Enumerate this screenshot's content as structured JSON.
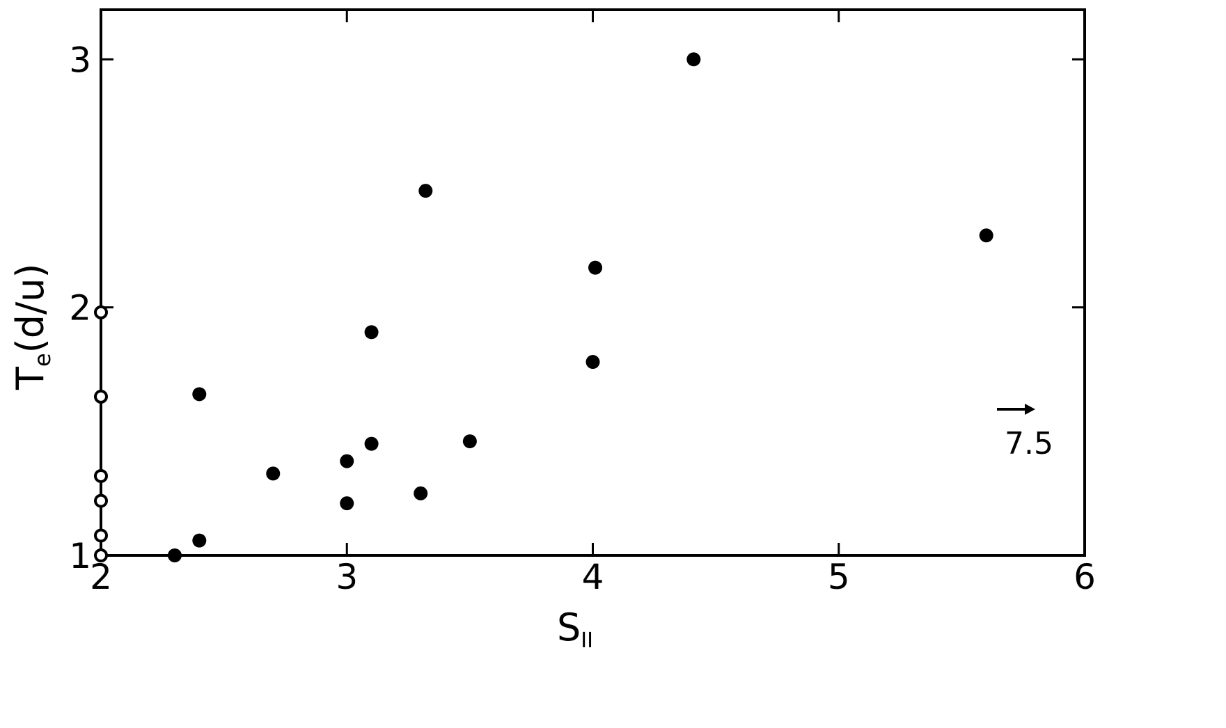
{
  "chart_data": {
    "type": "scatter",
    "title": "",
    "xlabel": "S",
    "xlabel_sub": "II",
    "ylabel": "T",
    "ylabel_sub": "e",
    "ylabel_rest": "(d/u)",
    "xlim": [
      2,
      6
    ],
    "ylim": [
      1,
      3.2
    ],
    "xticks": [
      2,
      3,
      4,
      5,
      6
    ],
    "xtick_labels": [
      "2",
      "3",
      "4",
      "5",
      "6"
    ],
    "yticks": [
      1,
      2,
      3
    ],
    "ytick_labels": [
      "1",
      "2",
      "3"
    ],
    "grid": false,
    "points": [
      {
        "x": 2.0,
        "y": 1.0,
        "style": "open"
      },
      {
        "x": 2.0,
        "y": 1.08,
        "style": "open"
      },
      {
        "x": 2.0,
        "y": 1.22,
        "style": "open"
      },
      {
        "x": 2.0,
        "y": 1.32,
        "style": "open"
      },
      {
        "x": 2.0,
        "y": 1.64,
        "style": "open"
      },
      {
        "x": 2.0,
        "y": 1.98,
        "style": "open"
      },
      {
        "x": 2.3,
        "y": 1.0,
        "style": "filled"
      },
      {
        "x": 2.4,
        "y": 1.06,
        "style": "filled"
      },
      {
        "x": 2.4,
        "y": 1.65,
        "style": "filled"
      },
      {
        "x": 2.7,
        "y": 1.33,
        "style": "filled"
      },
      {
        "x": 3.0,
        "y": 1.21,
        "style": "filled"
      },
      {
        "x": 3.0,
        "y": 1.38,
        "style": "filled"
      },
      {
        "x": 3.1,
        "y": 1.45,
        "style": "filled"
      },
      {
        "x": 3.1,
        "y": 1.9,
        "style": "filled"
      },
      {
        "x": 3.3,
        "y": 1.25,
        "style": "filled"
      },
      {
        "x": 3.32,
        "y": 2.47,
        "style": "filled"
      },
      {
        "x": 3.5,
        "y": 1.46,
        "style": "filled"
      },
      {
        "x": 4.0,
        "y": 1.78,
        "style": "filled"
      },
      {
        "x": 4.01,
        "y": 2.16,
        "style": "filled"
      },
      {
        "x": 4.41,
        "y": 3.0,
        "style": "filled"
      },
      {
        "x": 5.6,
        "y": 2.29,
        "style": "filled"
      }
    ],
    "annotations": [
      {
        "text": "7.5",
        "type": "offscale-arrow",
        "x": 5.85,
        "y": 1.53
      }
    ]
  }
}
